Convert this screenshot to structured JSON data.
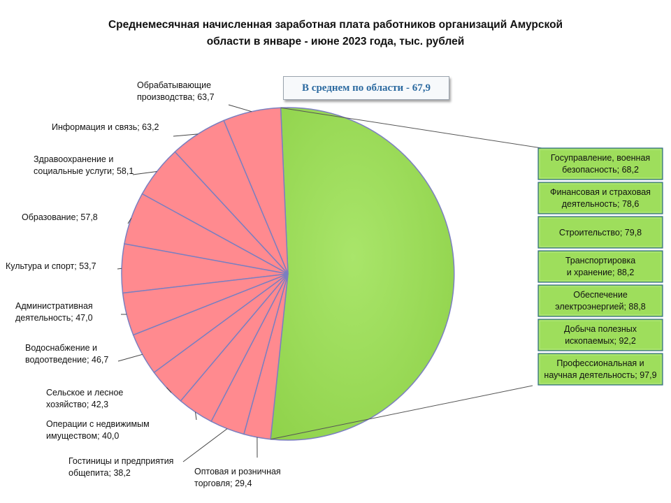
{
  "chart_data": {
    "type": "pie",
    "title": "Среднемесячная начисленная заработная  плата работников  организаций Амурской\nобласти  в январе - июне 2023 года,  тыс. рублей",
    "average_label": "В среднем по области -  67,9",
    "colors": {
      "below_average": "#ff8a8f",
      "above_average": "#9ede5c",
      "outline": "#7b7fc0",
      "box_outline": "#2f6a8a"
    },
    "slices": [
      {
        "label": "Обрабатывающие производства; 63,7",
        "lines": [
          "Обрабатывающие",
          "производства; 63,7"
        ],
        "value": 63.7
      },
      {
        "label": "Информация и связь;  63,2",
        "lines": [
          "Информация и связь;  63,2"
        ],
        "value": 63.2
      },
      {
        "label": "Здравоохранение и социальные услуги; 58,1",
        "lines": [
          "Здравоохранение и",
          "социальные услуги; 58,1"
        ],
        "value": 58.1
      },
      {
        "label": "Образование; 57,8",
        "lines": [
          "Образование; 57,8"
        ],
        "value": 57.8
      },
      {
        "label": "Культура и спорт; 53,7",
        "lines": [
          "Культура и спорт; 53,7"
        ],
        "value": 53.7
      },
      {
        "label": "Административная деятельность; 47,0",
        "lines": [
          "Административная",
          "деятельность; 47,0"
        ],
        "value": 47.0
      },
      {
        "label": "Водоснабжение и водоотведение; 46,7",
        "lines": [
          "Водоснабжение и",
          "водоотведение; 46,7"
        ],
        "value": 46.7
      },
      {
        "label": "Сельское и лесное хозяйство; 42,3",
        "lines": [
          "Сельское и лесное",
          "хозяйство; 42,3"
        ],
        "value": 42.3
      },
      {
        "label": "Операции с недвижимым имуществом; 40,0",
        "lines": [
          "Операции с недвижимым",
          "имуществом; 40,0"
        ],
        "value": 40.0
      },
      {
        "label": "Гостиницы и предприятия общепита; 38,2",
        "lines": [
          "Гостиницы и предприятия",
          "общепита; 38,2"
        ],
        "value": 38.2
      },
      {
        "label": "Оптовая и розничная торговля; 29,4",
        "lines": [
          "Оптовая и розничная",
          "торговля; 29,4"
        ],
        "value": 29.4
      }
    ],
    "above_average_group": [
      {
        "label": "Госуправление, военная безопасность; 68,2",
        "lines": [
          "Госуправление, военная",
          "безопасность; 68,2"
        ],
        "value": 68.2
      },
      {
        "label": "Финансовая и страховая деятельность; 78,6",
        "lines": [
          "Финансовая и страховая",
          "деятельность; 78,6"
        ],
        "value": 78.6
      },
      {
        "label": "Строительство; 79,8",
        "lines": [
          "Строительство; 79,8"
        ],
        "value": 79.8
      },
      {
        "label": "Транспортировка и хранение; 88,2",
        "lines": [
          "Транспортировка",
          "и хранение; 88,2"
        ],
        "value": 88.2
      },
      {
        "label": "Обеспечение электроэнергией; 88,8",
        "lines": [
          "Обеспечение",
          "электроэнергией; 88,8"
        ],
        "value": 88.8
      },
      {
        "label": "Добыча полезных ископаемых; 92,2",
        "lines": [
          "Добыча полезных",
          "ископаемых; 92,2"
        ],
        "value": 92.2
      },
      {
        "label": "Профессиональная и научная деятельность; 97,9",
        "lines": [
          "Профессиональная и",
          "научная деятельность; 97,9"
        ],
        "value": 97.9
      }
    ]
  }
}
